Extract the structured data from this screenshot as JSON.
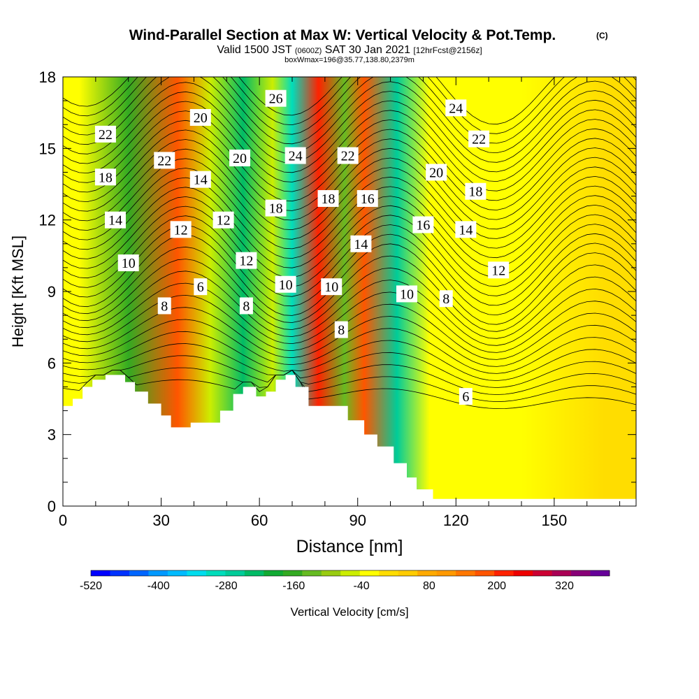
{
  "chart_data": {
    "type": "heatmap",
    "title": {
      "main": "Wind-Parallel Section at Max W: Vertical Velocity & Pot.Temp.",
      "main_tag": "(C)",
      "valid_prefix": "Valid 1500 JST",
      "valid_utc": "(0600Z)",
      "valid_date": "SAT 30 Jan 2021",
      "fcst": "[12hrFcst@2156z]",
      "box_info": "boxWmax=196@35.77,138.80,2379m"
    },
    "xlabel": "Distance [nm]",
    "ylabel": "Height [Kft MSL]",
    "xlim": [
      0,
      175
    ],
    "ylim": [
      0,
      18
    ],
    "xticks": [
      0,
      30,
      60,
      90,
      120,
      150
    ],
    "xtick_labels": [
      "0",
      "30",
      "60",
      "90",
      "120",
      "150"
    ],
    "yticks": [
      0,
      3,
      6,
      9,
      12,
      15,
      18
    ],
    "ytick_labels": [
      "0",
      "3",
      "6",
      "9",
      "12",
      "15",
      "18"
    ],
    "colorbar": {
      "label": "Vertical Velocity [cm/s]",
      "range": [
        -520,
        400
      ],
      "step": 40,
      "tick_values": [
        -520,
        -400,
        -280,
        -160,
        -40,
        80,
        200,
        320
      ],
      "tick_labels": [
        "-520",
        "-400",
        "-280",
        "-160",
        "-40",
        "80",
        "200",
        "320"
      ],
      "colors": [
        "#0000ff",
        "#0033ff",
        "#0066ff",
        "#0099ff",
        "#00bbff",
        "#00ddee",
        "#00ddbb",
        "#00cc99",
        "#00bb66",
        "#11aa33",
        "#33aa22",
        "#66bb22",
        "#99cc11",
        "#ccee00",
        "#ffff00",
        "#ffdd00",
        "#ffcc00",
        "#ffaa00",
        "#ff9900",
        "#ff7700",
        "#ff5500",
        "#ff2200",
        "#ee0000",
        "#cc0033",
        "#aa0055",
        "#880077",
        "#660099"
      ]
    },
    "vertical_velocity_bands": [
      {
        "x": 5,
        "value": 40
      },
      {
        "x": 20,
        "value": -100
      },
      {
        "x": 35,
        "value": 280
      },
      {
        "x": 45,
        "value": 10
      },
      {
        "x": 55,
        "value": -200
      },
      {
        "x": 64,
        "value": 10
      },
      {
        "x": 70,
        "value": -280
      },
      {
        "x": 78,
        "value": 320
      },
      {
        "x": 86,
        "value": -60
      },
      {
        "x": 92,
        "value": 300
      },
      {
        "x": 102,
        "value": -220
      },
      {
        "x": 112,
        "value": 40
      },
      {
        "x": 140,
        "value": 60
      },
      {
        "x": 165,
        "value": 80
      }
    ],
    "terrain_profile": [
      {
        "x": 0,
        "height": 4.2
      },
      {
        "x": 3,
        "height": 4.5
      },
      {
        "x": 6,
        "height": 5.0
      },
      {
        "x": 9,
        "height": 5.3
      },
      {
        "x": 13,
        "height": 5.5
      },
      {
        "x": 19,
        "height": 5.2
      },
      {
        "x": 22,
        "height": 4.8
      },
      {
        "x": 26,
        "height": 4.3
      },
      {
        "x": 30,
        "height": 3.8
      },
      {
        "x": 33,
        "height": 3.3
      },
      {
        "x": 39,
        "height": 3.5
      },
      {
        "x": 45,
        "height": 3.5
      },
      {
        "x": 48,
        "height": 4.0
      },
      {
        "x": 52,
        "height": 4.7
      },
      {
        "x": 55,
        "height": 5.0
      },
      {
        "x": 59,
        "height": 4.6
      },
      {
        "x": 62,
        "height": 4.8
      },
      {
        "x": 65,
        "height": 5.3
      },
      {
        "x": 68,
        "height": 5.5
      },
      {
        "x": 71,
        "height": 5.0
      },
      {
        "x": 75,
        "height": 4.2
      },
      {
        "x": 82,
        "height": 4.2
      },
      {
        "x": 87,
        "height": 3.6
      },
      {
        "x": 92,
        "height": 3.0
      },
      {
        "x": 96,
        "height": 2.5
      },
      {
        "x": 101,
        "height": 1.8
      },
      {
        "x": 105,
        "height": 1.2
      },
      {
        "x": 108,
        "height": 0.7
      },
      {
        "x": 113,
        "height": 0.3
      },
      {
        "x": 120,
        "height": 0.3
      },
      {
        "x": 175,
        "height": 0.3
      }
    ],
    "pot_temp_contour_labels": [
      {
        "value": "22",
        "x": 13,
        "y": 15.6
      },
      {
        "value": "18",
        "x": 13,
        "y": 13.8
      },
      {
        "value": "14",
        "x": 16,
        "y": 12.0
      },
      {
        "value": "10",
        "x": 20,
        "y": 10.2
      },
      {
        "value": "8",
        "x": 31,
        "y": 8.4
      },
      {
        "value": "22",
        "x": 31,
        "y": 14.5
      },
      {
        "value": "12",
        "x": 36,
        "y": 11.6
      },
      {
        "value": "20",
        "x": 42,
        "y": 16.3
      },
      {
        "value": "14",
        "x": 42,
        "y": 13.7
      },
      {
        "value": "6",
        "x": 42,
        "y": 9.2
      },
      {
        "value": "12",
        "x": 49,
        "y": 12.0
      },
      {
        "value": "20",
        "x": 54,
        "y": 14.6
      },
      {
        "value": "12",
        "x": 56,
        "y": 10.3
      },
      {
        "value": "8",
        "x": 56,
        "y": 8.4
      },
      {
        "value": "26",
        "x": 65,
        "y": 17.1
      },
      {
        "value": "24",
        "x": 71,
        "y": 14.7
      },
      {
        "value": "18",
        "x": 65,
        "y": 12.5
      },
      {
        "value": "10",
        "x": 68,
        "y": 9.3
      },
      {
        "value": "18",
        "x": 81,
        "y": 12.9
      },
      {
        "value": "10",
        "x": 82,
        "y": 9.2
      },
      {
        "value": "8",
        "x": 85,
        "y": 7.4
      },
      {
        "value": "22",
        "x": 87,
        "y": 14.7
      },
      {
        "value": "16",
        "x": 93,
        "y": 12.9
      },
      {
        "value": "14",
        "x": 91,
        "y": 11.0
      },
      {
        "value": "24",
        "x": 120,
        "y": 16.7
      },
      {
        "value": "22",
        "x": 127,
        "y": 15.4
      },
      {
        "value": "20",
        "x": 114,
        "y": 14.0
      },
      {
        "value": "18",
        "x": 126,
        "y": 13.2
      },
      {
        "value": "16",
        "x": 110,
        "y": 11.8
      },
      {
        "value": "14",
        "x": 123,
        "y": 11.6
      },
      {
        "value": "12",
        "x": 133,
        "y": 9.9
      },
      {
        "value": "10",
        "x": 105,
        "y": 8.9
      },
      {
        "value": "8",
        "x": 117,
        "y": 8.7
      },
      {
        "value": "6",
        "x": 123,
        "y": 4.6
      }
    ]
  }
}
